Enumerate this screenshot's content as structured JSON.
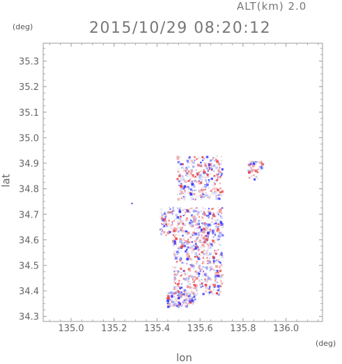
{
  "header": {
    "alt_label": "ALT(km) 2.0",
    "timestamp": "2015/10/29 08:20:12"
  },
  "axes": {
    "y_unit": "(deg)",
    "x_unit": "(deg)",
    "x_label": "lon",
    "y_label": "lat"
  },
  "chart_data": {
    "type": "heatmap",
    "xlabel": "lon",
    "ylabel": "lat",
    "xlim": [
      134.87,
      136.17
    ],
    "ylim": [
      34.28,
      35.37
    ],
    "x_ticks": [
      "135.0",
      "135.2",
      "135.4",
      "135.6",
      "135.8",
      "136.0"
    ],
    "y_ticks": [
      "34.3",
      "34.4",
      "34.5",
      "34.6",
      "34.7",
      "34.8",
      "34.9",
      "35.0",
      "35.1",
      "35.2",
      "35.3"
    ],
    "colors": {
      "positive": "#e8474b",
      "negative": "#3b3bff",
      "neutral": "#dde0f0"
    }
  }
}
